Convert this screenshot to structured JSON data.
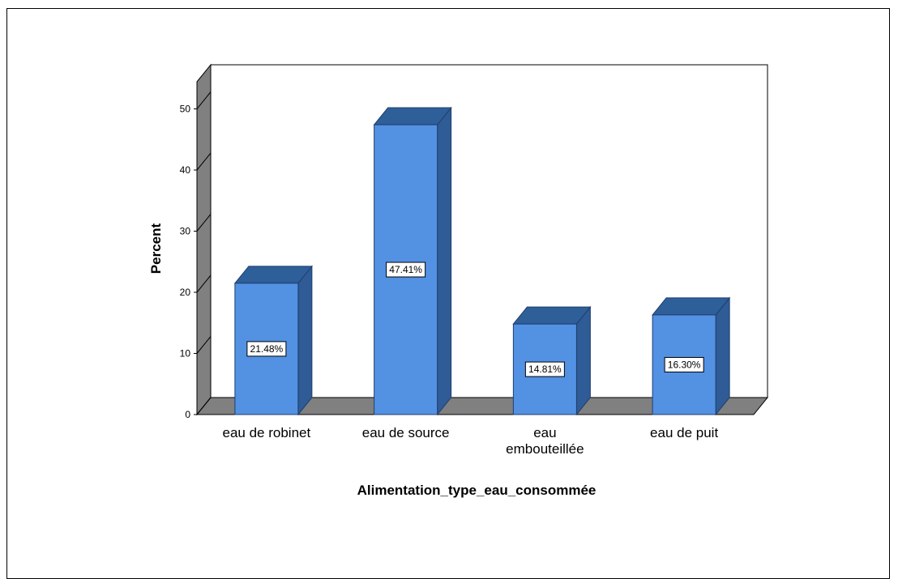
{
  "chart_data": {
    "type": "bar",
    "categories": [
      "eau de robinet",
      "eau de source",
      "eau embouteillée",
      "eau de puit"
    ],
    "category_lines": [
      [
        "eau de robinet"
      ],
      [
        "eau de source"
      ],
      [
        "eau",
        "embouteillée"
      ],
      [
        "eau de puit"
      ]
    ],
    "values": [
      21.48,
      47.41,
      14.81,
      16.3
    ],
    "data_labels": [
      "21.48%",
      "47.41%",
      "14.81%",
      "16.30%"
    ],
    "title": "",
    "xlabel": "Alimentation_type_eau_consommée",
    "ylabel": "Percent",
    "ylim": [
      0,
      55
    ],
    "yticks": [
      0,
      10,
      20,
      30,
      40,
      50
    ],
    "grid": false,
    "legend": "none",
    "style": "3d-bar",
    "colors": {
      "bar_front": "#5391E3",
      "bar_top": "#2F5F99",
      "bar_side": "#2F5B96",
      "floor": "#808080",
      "wall_side": "#808080"
    }
  }
}
